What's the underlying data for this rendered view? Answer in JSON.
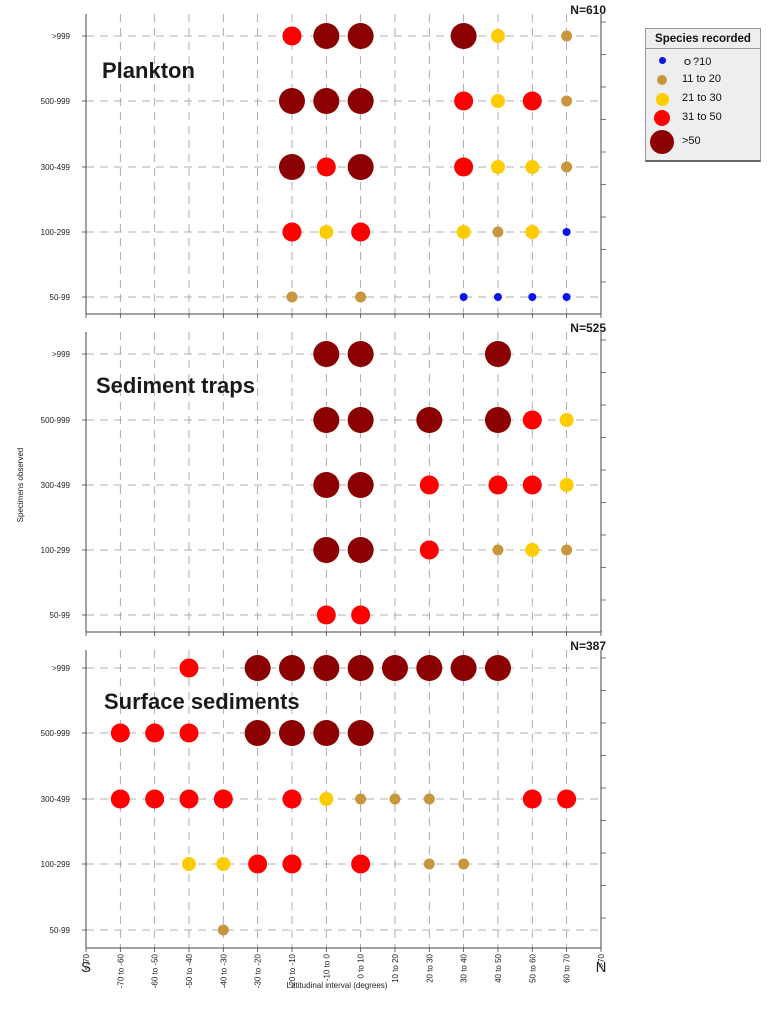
{
  "chart_data": {
    "type": "scatter",
    "x_tick_labels": [
      "<-70",
      "-70 to -60",
      "-60 to -50",
      "-50 to -40",
      "-40 to -30",
      "-30 to -20",
      "-20 to -10",
      "-10 to 0",
      "0 to 10",
      "10 to 20",
      "20 to 30",
      "30 to 40",
      "40 to 50",
      "50 to 60",
      "60 to 70",
      ">70"
    ],
    "y_categories": [
      "50-99",
      "100-299",
      "300-499",
      "500-999",
      ">999"
    ],
    "xlabel": "Latitudinal interval (degrees)",
    "ylabel": "Specimens observed",
    "x_end_labels": {
      "left": "S",
      "right": "N"
    },
    "grid": true,
    "legend": {
      "title": "Species recorded",
      "placement": "top-right, outside",
      "entries": [
        {
          "label": "ｏ?10",
          "color": "#0a14f0",
          "class": 1
        },
        {
          "label": "11 to 20",
          "color": "#c8963c",
          "class": 2
        },
        {
          "label": "21 to 30",
          "color": "#ffcc00",
          "class": 3
        },
        {
          "label": "31 to 50",
          "color": "#ff0000",
          "class": 4
        },
        {
          "label": ">50",
          "color": "#8b0000",
          "class": 5
        }
      ]
    },
    "panels": [
      {
        "title": "Plankton",
        "n_label": "N=610",
        "points": [
          {
            "x": "-20 to -10",
            "y": ">999",
            "class": 4
          },
          {
            "x": "-10 to 0",
            "y": ">999",
            "class": 5
          },
          {
            "x": "0 to 10",
            "y": ">999",
            "class": 5
          },
          {
            "x": "30 to 40",
            "y": ">999",
            "class": 5
          },
          {
            "x": "40 to 50",
            "y": ">999",
            "class": 3
          },
          {
            "x": "60 to 70",
            "y": ">999",
            "class": 2
          },
          {
            "x": "-20 to -10",
            "y": "500-999",
            "class": 5
          },
          {
            "x": "-10 to 0",
            "y": "500-999",
            "class": 5
          },
          {
            "x": "0 to 10",
            "y": "500-999",
            "class": 5
          },
          {
            "x": "30 to 40",
            "y": "500-999",
            "class": 4
          },
          {
            "x": "40 to 50",
            "y": "500-999",
            "class": 3
          },
          {
            "x": "50 to 60",
            "y": "500-999",
            "class": 4
          },
          {
            "x": "60 to 70",
            "y": "500-999",
            "class": 2
          },
          {
            "x": "-20 to -10",
            "y": "300-499",
            "class": 5
          },
          {
            "x": "-10 to 0",
            "y": "300-499",
            "class": 4
          },
          {
            "x": "0 to 10",
            "y": "300-499",
            "class": 5
          },
          {
            "x": "30 to 40",
            "y": "300-499",
            "class": 4
          },
          {
            "x": "40 to 50",
            "y": "300-499",
            "class": 3
          },
          {
            "x": "50 to 60",
            "y": "300-499",
            "class": 3
          },
          {
            "x": "60 to 70",
            "y": "300-499",
            "class": 2
          },
          {
            "x": "-20 to -10",
            "y": "100-299",
            "class": 4
          },
          {
            "x": "-10 to 0",
            "y": "100-299",
            "class": 3
          },
          {
            "x": "0 to 10",
            "y": "100-299",
            "class": 4
          },
          {
            "x": "30 to 40",
            "y": "100-299",
            "class": 3
          },
          {
            "x": "40 to 50",
            "y": "100-299",
            "class": 2
          },
          {
            "x": "50 to 60",
            "y": "100-299",
            "class": 3
          },
          {
            "x": "60 to 70",
            "y": "100-299",
            "class": 1
          },
          {
            "x": "-20 to -10",
            "y": "50-99",
            "class": 2
          },
          {
            "x": "0 to 10",
            "y": "50-99",
            "class": 2
          },
          {
            "x": "30 to 40",
            "y": "50-99",
            "class": 1
          },
          {
            "x": "40 to 50",
            "y": "50-99",
            "class": 1
          },
          {
            "x": "50 to 60",
            "y": "50-99",
            "class": 1
          },
          {
            "x": "60 to 70",
            "y": "50-99",
            "class": 1
          }
        ]
      },
      {
        "title": "Sediment traps",
        "n_label": "N=525",
        "points": [
          {
            "x": "-10 to 0",
            "y": ">999",
            "class": 5
          },
          {
            "x": "0 to 10",
            "y": ">999",
            "class": 5
          },
          {
            "x": "40 to 50",
            "y": ">999",
            "class": 5
          },
          {
            "x": "-10 to 0",
            "y": "500-999",
            "class": 5
          },
          {
            "x": "0 to 10",
            "y": "500-999",
            "class": 5
          },
          {
            "x": "20 to 30",
            "y": "500-999",
            "class": 5
          },
          {
            "x": "40 to 50",
            "y": "500-999",
            "class": 5
          },
          {
            "x": "50 to 60",
            "y": "500-999",
            "class": 4
          },
          {
            "x": "60 to 70",
            "y": "500-999",
            "class": 3
          },
          {
            "x": "-10 to 0",
            "y": "300-499",
            "class": 5
          },
          {
            "x": "0 to 10",
            "y": "300-499",
            "class": 5
          },
          {
            "x": "20 to 30",
            "y": "300-499",
            "class": 4
          },
          {
            "x": "40 to 50",
            "y": "300-499",
            "class": 4
          },
          {
            "x": "50 to 60",
            "y": "300-499",
            "class": 4
          },
          {
            "x": "60 to 70",
            "y": "300-499",
            "class": 3
          },
          {
            "x": "-10 to 0",
            "y": "100-299",
            "class": 5
          },
          {
            "x": "0 to 10",
            "y": "100-299",
            "class": 5
          },
          {
            "x": "20 to 30",
            "y": "100-299",
            "class": 4
          },
          {
            "x": "40 to 50",
            "y": "100-299",
            "class": 2
          },
          {
            "x": "50 to 60",
            "y": "100-299",
            "class": 3
          },
          {
            "x": "60 to 70",
            "y": "100-299",
            "class": 2
          },
          {
            "x": "-10 to 0",
            "y": "50-99",
            "class": 4
          },
          {
            "x": "0 to 10",
            "y": "50-99",
            "class": 4
          }
        ]
      },
      {
        "title": "Surface sediments",
        "n_label": "N=387",
        "points": [
          {
            "x": "-50 to -40",
            "y": ">999",
            "class": 4
          },
          {
            "x": "-30 to -20",
            "y": ">999",
            "class": 5
          },
          {
            "x": "-20 to -10",
            "y": ">999",
            "class": 5
          },
          {
            "x": "-10 to 0",
            "y": ">999",
            "class": 5
          },
          {
            "x": "0 to 10",
            "y": ">999",
            "class": 5
          },
          {
            "x": "10 to 20",
            "y": ">999",
            "class": 5
          },
          {
            "x": "20 to 30",
            "y": ">999",
            "class": 5
          },
          {
            "x": "30 to 40",
            "y": ">999",
            "class": 5
          },
          {
            "x": "40 to 50",
            "y": ">999",
            "class": 5
          },
          {
            "x": "-70 to -60",
            "y": "500-999",
            "class": 4
          },
          {
            "x": "-60 to -50",
            "y": "500-999",
            "class": 4
          },
          {
            "x": "-50 to -40",
            "y": "500-999",
            "class": 4
          },
          {
            "x": "-30 to -20",
            "y": "500-999",
            "class": 5
          },
          {
            "x": "-20 to -10",
            "y": "500-999",
            "class": 5
          },
          {
            "x": "-10 to 0",
            "y": "500-999",
            "class": 5
          },
          {
            "x": "0 to 10",
            "y": "500-999",
            "class": 5
          },
          {
            "x": "-70 to -60",
            "y": "300-499",
            "class": 4
          },
          {
            "x": "-60 to -50",
            "y": "300-499",
            "class": 4
          },
          {
            "x": "-50 to -40",
            "y": "300-499",
            "class": 4
          },
          {
            "x": "-40 to -30",
            "y": "300-499",
            "class": 4
          },
          {
            "x": "-20 to -10",
            "y": "300-499",
            "class": 4
          },
          {
            "x": "-10 to 0",
            "y": "300-499",
            "class": 3
          },
          {
            "x": "0 to 10",
            "y": "300-499",
            "class": 2
          },
          {
            "x": "10 to 20",
            "y": "300-499",
            "class": 2
          },
          {
            "x": "20 to 30",
            "y": "300-499",
            "class": 2
          },
          {
            "x": "50 to 60",
            "y": "300-499",
            "class": 4
          },
          {
            "x": "60 to 70",
            "y": "300-499",
            "class": 4
          },
          {
            "x": "-50 to -40",
            "y": "100-299",
            "class": 3
          },
          {
            "x": "-40 to -30",
            "y": "100-299",
            "class": 3
          },
          {
            "x": "-30 to -20",
            "y": "100-299",
            "class": 4
          },
          {
            "x": "-20 to -10",
            "y": "100-299",
            "class": 4
          },
          {
            "x": "0 to 10",
            "y": "100-299",
            "class": 4
          },
          {
            "x": "20 to 30",
            "y": "100-299",
            "class": 2
          },
          {
            "x": "30 to 40",
            "y": "100-299",
            "class": 2
          },
          {
            "x": "-40 to -30",
            "y": "50-99",
            "class": 2
          }
        ]
      }
    ]
  }
}
